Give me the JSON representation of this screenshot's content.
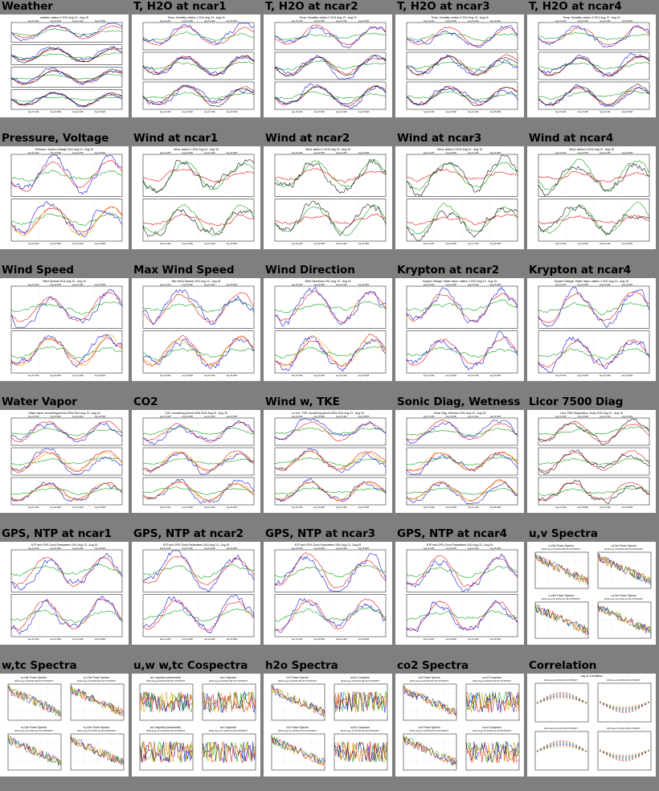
{
  "thumbnails": [
    {
      "title": "Weather",
      "kind": "ts",
      "plot_title": "weather, station 0 2011 Aug 13 - Aug 15",
      "panels": 4,
      "colors": [
        "#d00",
        "#090",
        "#00c",
        "#000"
      ]
    },
    {
      "title": "T, H2O at ncar1",
      "kind": "ts",
      "plot_title": "Temp, Humidity, station 1 2011 Aug 13 - Aug 15",
      "panels": 3,
      "colors": [
        "#d00",
        "#090",
        "#00c",
        "#000"
      ]
    },
    {
      "title": "T, H2O at ncar2",
      "kind": "ts",
      "plot_title": "Temp, Humidity, station 2 2011 Aug 13 - Aug 15",
      "panels": 3,
      "colors": [
        "#d00",
        "#090",
        "#00c",
        "#000"
      ]
    },
    {
      "title": "T, H2O at ncar3",
      "kind": "ts",
      "plot_title": "Temp, Humidity, station 3 2011 Aug 13 - Aug 15",
      "panels": 3,
      "colors": [
        "#d00",
        "#090",
        "#00c",
        "#000"
      ]
    },
    {
      "title": "T, H2O at ncar4",
      "kind": "ts",
      "plot_title": "Temp, Humidity, station 4 2011 Aug 13 - Aug 15",
      "panels": 3,
      "colors": [
        "#d00",
        "#090",
        "#00c",
        "#000"
      ]
    },
    {
      "title": "Pressure, Voltage",
      "kind": "ts",
      "plot_title": "Pressure, System Voltage 2011 Aug 13 - Aug 15",
      "panels": 2,
      "colors": [
        "#d00",
        "#090",
        "#00c",
        "#e90"
      ]
    },
    {
      "title": "Wind at ncar1",
      "kind": "ts",
      "plot_title": "Wind, station 1 2011 Aug 13 - Aug 15",
      "panels": 2,
      "colors": [
        "#090",
        "#d00",
        "#000"
      ]
    },
    {
      "title": "Wind at ncar2",
      "kind": "ts",
      "plot_title": "Wind, station 2 2011 Aug 13 - Aug 15",
      "panels": 2,
      "colors": [
        "#090",
        "#d00",
        "#000"
      ]
    },
    {
      "title": "Wind at ncar3",
      "kind": "ts",
      "plot_title": "Wind, station 3 2011 Aug 13 - Aug 15",
      "panels": 2,
      "colors": [
        "#090",
        "#d00",
        "#000"
      ]
    },
    {
      "title": "Wind at ncar4",
      "kind": "ts",
      "plot_title": "Wind, station 4 2011 Aug 13 - Aug 15",
      "panels": 2,
      "colors": [
        "#090",
        "#d00",
        "#000"
      ]
    },
    {
      "title": "Wind Speed",
      "kind": "ts",
      "plot_title": "Wind Speeds 2011 Aug 13 - Aug 15",
      "panels": 2,
      "colors": [
        "#d00",
        "#090",
        "#00c",
        "#e90"
      ]
    },
    {
      "title": "Max Wind Speed",
      "kind": "ts",
      "plot_title": "Max Wind Speeds 2011 Aug 13 - Aug 15",
      "panels": 2,
      "colors": [
        "#d00",
        "#090",
        "#00c",
        "#e90"
      ]
    },
    {
      "title": "Wind Direction",
      "kind": "ts",
      "plot_title": "Wind Directions 2011 Aug 13 - Aug 15",
      "panels": 2,
      "colors": [
        "#d00",
        "#090",
        "#00c",
        "#e90"
      ]
    },
    {
      "title": "Krypton at ncar2",
      "kind": "ts",
      "plot_title": "Krypton Voltage, Water Vapor, station 2 2011 Aug 13 - Aug 15",
      "panels": 2,
      "colors": [
        "#d00",
        "#090",
        "#00c"
      ]
    },
    {
      "title": "Krypton at ncar4",
      "kind": "ts",
      "plot_title": "Krypton Voltage, Water Vapor, station 4 2011 Aug 13 - Aug 15",
      "panels": 2,
      "colors": [
        "#d00",
        "#090",
        "#00c"
      ]
    },
    {
      "title": "Water Vapor",
      "kind": "ts",
      "plot_title": "Water Vapor, smoothing period=300s 2011 Aug 13 - Aug 15",
      "panels": 3,
      "colors": [
        "#d00",
        "#090",
        "#00c",
        "#e90"
      ]
    },
    {
      "title": "CO2",
      "kind": "ts",
      "plot_title": "CO2, smoothing period=300s 2011 Aug 13 - Aug 15",
      "panels": 3,
      "colors": [
        "#d00",
        "#090",
        "#00c",
        "#e90"
      ]
    },
    {
      "title": "Wind w, TKE",
      "kind": "ts",
      "plot_title": "w, w'w', TKE, smoothing period=300s 2011 Aug 13 - Aug 15",
      "panels": 3,
      "colors": [
        "#d00",
        "#090",
        "#00c",
        "#e90"
      ]
    },
    {
      "title": "Sonic Diag, Wetness",
      "kind": "ts",
      "plot_title": "Sonic Diag, Wetness 2011 Aug 13 - Aug 15",
      "panels": 3,
      "colors": [
        "#d00",
        "#090",
        "#00c",
        "#e90"
      ]
    },
    {
      "title": "Licor 7500 Diag",
      "kind": "ts",
      "plot_title": "Licor 7500 Diagnostics, Temp 2011 Aug 13 - Aug 15",
      "panels": 3,
      "colors": [
        "#d00",
        "#090",
        "#000"
      ]
    },
    {
      "title": "GPS, NTP at ncar1",
      "kind": "ts",
      "plot_title": "NTP and GPS Clock Parameters 2011 Aug 13 - Aug 15",
      "panels": 2,
      "colors": [
        "#d00",
        "#090",
        "#00c"
      ]
    },
    {
      "title": "GPS, NTP at ncar2",
      "kind": "ts",
      "plot_title": "NTP and GPS Clock Parameters 2011 Aug 13 - Aug 15",
      "panels": 2,
      "colors": [
        "#d00",
        "#090",
        "#00c"
      ]
    },
    {
      "title": "GPS, NTP at ncar3",
      "kind": "ts",
      "plot_title": "NTP and GPS Clock Parameters 2011 Aug 13 - Aug 15",
      "panels": 2,
      "colors": [
        "#d00",
        "#090",
        "#00c"
      ]
    },
    {
      "title": "GPS, NTP at ncar4",
      "kind": "ts",
      "plot_title": "NTP and GPS Clock Parameters 2011 Aug 13 - Aug 15",
      "panels": 2,
      "colors": [
        "#d00",
        "#090",
        "#00c"
      ]
    },
    {
      "title": "u,v Spectra",
      "kind": "spec",
      "quad_titles": [
        "u,4.5m Power Spectra",
        "v,4.5m Power Spectra",
        "u,4.5m Power Spectra",
        "v,4.5m Power Spectra"
      ],
      "quad_subs": [
        "2011 Aug 14 00:00-00:30 CST6CDT",
        "2011 Aug 14 00:00-00:30 CST6CDT",
        "2011 Aug 14 12:00-12:30 CST6CDT",
        "2011 Aug 14 12:00-12:30 CST6CDT"
      ],
      "colors": [
        "#d00",
        "#090",
        "#00c",
        "#e90"
      ]
    },
    {
      "title": "w,tc Spectra",
      "kind": "spec",
      "quad_titles": [
        "w,4.5m Power Spectra",
        "tc,4.5m Power Spectra",
        "w,4.5m Power Spectra",
        "tc,4.5m Power Spectra"
      ],
      "quad_subs": [
        "2011 Aug 14 00:00-00:30 CST6CDT",
        "2011 Aug 14 00:00-00:30 CST6CDT",
        "2011 Aug 14 12:00-12:30 CST6CDT",
        "2011 Aug 14 12:00-12:30 CST6CDT"
      ],
      "colors": [
        "#d00",
        "#090",
        "#00c",
        "#e90"
      ]
    },
    {
      "title": "u,w w,tc Cospectra",
      "kind": "spec",
      "quad_titles": [
        "uw Cospectra (streamwise)",
        "wtc Cospectra",
        "uw Cospectra (streamwise)",
        "wtc Cospectra"
      ],
      "quad_subs": [
        "2011 Aug 14 00:00-00:30 CST6CDT",
        "2011 Aug 14 00:00-00:30 CST6CDT",
        "2011 Aug 14 12:00-12:30 CST6CDT",
        "2011 Aug 14 12:00-12:30 CST6CDT"
      ],
      "colors": [
        "#d00",
        "#090",
        "#00c",
        "#e90"
      ]
    },
    {
      "title": "h2o Spectra",
      "kind": "spec",
      "quad_titles": [
        "h2o Power Spectra",
        "w,h2o Cospectra",
        "h2o Power Spectra",
        "w,h2o Cospectra"
      ],
      "quad_subs": [
        "2011 Aug 14 00:00-00:30 CST6CDT",
        "2011 Aug 14 00:00-00:30 CST6CDT",
        "2011 Aug 14 12:00-12:30 CST6CDT",
        "2011 Aug 14 12:00-12:30 CST6CDT"
      ],
      "colors": [
        "#d00",
        "#090",
        "#00c",
        "#e90"
      ]
    },
    {
      "title": "co2 Spectra",
      "kind": "spec",
      "quad_titles": [
        "co2 Power Spectra",
        "w,co2 Cospectra",
        "co2 Power Spectra",
        "w,co2 Cospectra"
      ],
      "quad_subs": [
        "2011 Aug 14 00:00-00:30 CST6CDT",
        "2011 Aug 14 00:00-00:30 CST6CDT",
        "2011 Aug 14 12:00-12:30 CST6CDT",
        "2011 Aug 14 12:00-12:30 CST6CDT"
      ],
      "colors": [
        "#d00",
        "#090",
        "#00c",
        "#e90"
      ]
    },
    {
      "title": "Correlation",
      "kind": "corr",
      "plot_title": "Lag vs Correlation",
      "quad_subs": [
        "2011 Aug 14 00:00-00:30 CST6CDT",
        "2011 Aug 14 00:00-00:30 CST6CDT",
        "2011 Aug 14 12:00-12:30 CST6CDT",
        "2011 Aug 14 12:00-12:30 CST6CDT"
      ],
      "colors": [
        "#d00",
        "#090",
        "#00c",
        "#e90"
      ]
    }
  ],
  "tick_labels": [
    "Aug 13 1200",
    "Aug 14 0000",
    "Aug 14 1200",
    "Aug 15 0000"
  ]
}
